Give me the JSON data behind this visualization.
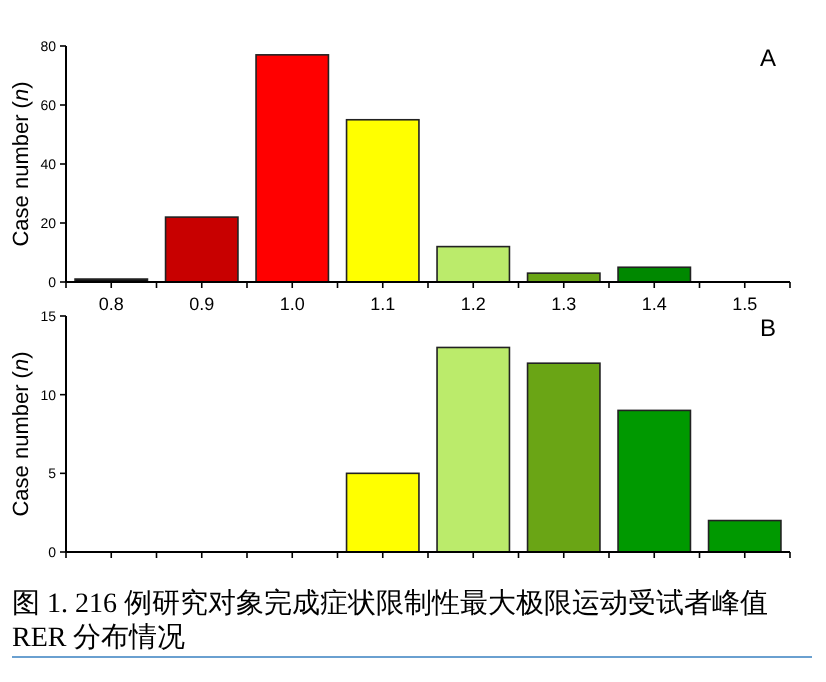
{
  "chart_data": [
    {
      "type": "bar",
      "categories": [
        "0.8",
        "0.9",
        "1.0",
        "1.1",
        "1.2",
        "1.3",
        "1.4",
        "1.5"
      ],
      "values": [
        1,
        22,
        77,
        55,
        12,
        3,
        5,
        0
      ],
      "colors": [
        "#111111",
        "#c80000",
        "#ff0000",
        "#ffff00",
        "#bbeb6b",
        "#6aa515",
        "#008800",
        "#008800"
      ],
      "ylabel": "Case number (n)",
      "ylim": [
        0,
        80
      ],
      "yticks": [
        0,
        20,
        40,
        60,
        80
      ],
      "annotations": [
        "A"
      ]
    },
    {
      "type": "bar",
      "categories": [
        null,
        null,
        null,
        null,
        null,
        null,
        null,
        null
      ],
      "values": [
        0,
        0,
        0,
        5,
        13,
        12,
        9,
        2
      ],
      "colors": [
        "#111111",
        "#c80000",
        "#ff0000",
        "#ffff00",
        "#bbeb6b",
        "#6aa515",
        "#009900",
        "#009900"
      ],
      "ylabel": "Case number (n)",
      "ylim": [
        0,
        15
      ],
      "yticks": [
        0,
        5,
        10,
        15
      ],
      "tick_labels": "y",
      "annotations": [
        "B",
        "图 1. 216 例研究对象完成症状限制性最大极限运动受试者峰值 RER 分布情况"
      ]
    }
  ]
}
